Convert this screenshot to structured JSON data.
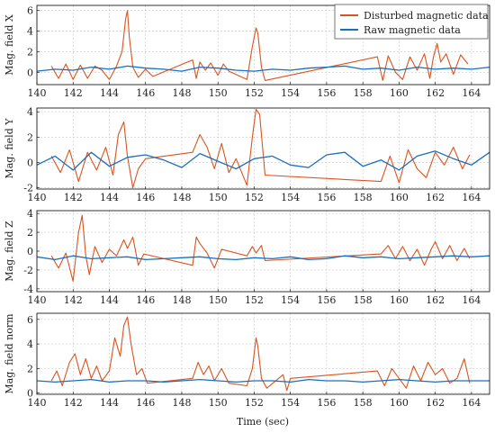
{
  "legend": {
    "position": "top-right",
    "entries": [
      {
        "label": "Disturbed magnetic data",
        "color": "#d9541e"
      },
      {
        "label": "Raw magnetic data",
        "color": "#1a6fbd"
      }
    ]
  },
  "chart_data": [
    {
      "type": "line",
      "ylabel": "Mag. field X",
      "xlim": [
        140,
        165
      ],
      "ylim": [
        -1.2,
        6.5
      ],
      "yticks": [
        0,
        2,
        4,
        6
      ],
      "xticks": [
        140,
        142,
        144,
        146,
        148,
        150,
        152,
        154,
        156,
        158,
        160,
        162,
        164
      ],
      "grid": true,
      "series": [
        {
          "name": "Disturbed magnetic data",
          "color": "#d9541e",
          "x": [
            140.8,
            141.2,
            141.6,
            142.0,
            142.4,
            142.8,
            143.2,
            143.6,
            144.0,
            144.4,
            144.7,
            144.9,
            145.0,
            145.1,
            145.3,
            145.6,
            146.0,
            146.4,
            148.6,
            148.8,
            149.0,
            149.3,
            149.6,
            150.0,
            150.3,
            150.6,
            151.6,
            151.9,
            152.1,
            152.2,
            152.4,
            152.6,
            158.8,
            159.1,
            159.4,
            159.8,
            160.2,
            160.6,
            161.0,
            161.4,
            161.7,
            161.9,
            162.1,
            162.3,
            162.6,
            163.0,
            163.4,
            163.8
          ],
          "y": [
            0.6,
            -0.6,
            0.8,
            -0.7,
            0.7,
            -0.6,
            0.6,
            0.2,
            -0.7,
            0.6,
            2.0,
            5.2,
            6.0,
            3.5,
            0.5,
            -0.5,
            0.3,
            -0.4,
            1.2,
            -0.6,
            1.0,
            0.2,
            0.9,
            -0.3,
            0.8,
            0.1,
            -0.7,
            2.5,
            4.3,
            3.8,
            0.5,
            -0.8,
            1.5,
            -0.8,
            1.6,
            0.0,
            -0.7,
            1.5,
            0.2,
            1.8,
            -0.6,
            1.5,
            2.8,
            1.0,
            1.8,
            -0.2,
            1.7,
            0.8
          ]
        },
        {
          "name": "Raw magnetic data",
          "color": "#1a6fbd",
          "x": [
            140.0,
            141.0,
            142.0,
            143.0,
            144.0,
            145.0,
            146.0,
            147.0,
            148.0,
            149.0,
            150.0,
            151.0,
            152.0,
            153.0,
            154.0,
            155.0,
            156.0,
            157.0,
            158.0,
            159.0,
            160.0,
            161.0,
            162.0,
            163.0,
            164.0,
            165.0
          ],
          "y": [
            0.1,
            0.3,
            0.2,
            0.5,
            0.3,
            0.6,
            0.4,
            0.3,
            0.1,
            0.5,
            0.4,
            0.2,
            0.1,
            0.3,
            0.2,
            0.4,
            0.5,
            0.6,
            0.3,
            0.4,
            0.2,
            0.5,
            0.3,
            0.4,
            0.3,
            0.5
          ]
        }
      ]
    },
    {
      "type": "line",
      "ylabel": "Mag. field Y",
      "xlim": [
        140,
        165
      ],
      "ylim": [
        -2.1,
        4.3
      ],
      "yticks": [
        -2,
        0,
        2,
        4
      ],
      "xticks": [
        140,
        142,
        144,
        146,
        148,
        150,
        152,
        154,
        156,
        158,
        160,
        162,
        164
      ],
      "grid": true,
      "series": [
        {
          "name": "Disturbed magnetic data",
          "color": "#d9541e",
          "x": [
            140.8,
            141.3,
            141.8,
            142.3,
            142.8,
            143.3,
            143.8,
            144.2,
            144.5,
            144.8,
            145.0,
            145.3,
            145.6,
            146.0,
            148.6,
            149.0,
            149.4,
            149.8,
            150.2,
            150.6,
            151.0,
            151.6,
            151.9,
            152.1,
            152.3,
            152.6,
            159.0,
            159.5,
            160.0,
            160.5,
            161.0,
            161.5,
            162.0,
            162.5,
            163.0,
            163.5,
            163.9
          ],
          "y": [
            0.5,
            -0.8,
            1.0,
            -1.5,
            0.8,
            -0.6,
            1.2,
            -1.0,
            2.2,
            3.2,
            0.5,
            -2.0,
            -0.5,
            0.3,
            0.8,
            2.2,
            1.2,
            -0.5,
            1.5,
            -0.8,
            0.3,
            -1.8,
            2.0,
            4.2,
            3.8,
            -1.0,
            -1.5,
            0.5,
            -1.6,
            1.0,
            -0.5,
            -1.2,
            0.8,
            -0.2,
            1.2,
            -0.5,
            0.6
          ]
        },
        {
          "name": "Raw magnetic data",
          "color": "#1a6fbd",
          "x": [
            140.0,
            141.0,
            142.0,
            143.0,
            144.0,
            145.0,
            146.0,
            147.0,
            148.0,
            149.0,
            150.0,
            151.0,
            152.0,
            153.0,
            154.0,
            155.0,
            156.0,
            157.0,
            158.0,
            159.0,
            160.0,
            161.0,
            162.0,
            163.0,
            164.0,
            165.0
          ],
          "y": [
            -0.2,
            0.5,
            -0.6,
            0.8,
            -0.3,
            0.4,
            0.6,
            0.2,
            -0.4,
            0.7,
            0.1,
            -0.5,
            0.3,
            0.5,
            -0.2,
            -0.4,
            0.6,
            0.8,
            -0.3,
            0.2,
            -0.6,
            0.5,
            0.9,
            0.3,
            -0.2,
            0.8
          ]
        }
      ]
    },
    {
      "type": "line",
      "ylabel": "Mag. field Z",
      "xlim": [
        140,
        165
      ],
      "ylim": [
        -4.3,
        4.3
      ],
      "yticks": [
        -4,
        -2,
        0,
        2,
        4
      ],
      "xticks": [
        140,
        142,
        144,
        146,
        148,
        150,
        152,
        154,
        156,
        158,
        160,
        162,
        164
      ],
      "grid": true,
      "series": [
        {
          "name": "Disturbed magnetic data",
          "color": "#d9541e",
          "x": [
            140.8,
            141.2,
            141.6,
            142.0,
            142.3,
            142.5,
            142.7,
            142.9,
            143.2,
            143.6,
            144.0,
            144.4,
            144.8,
            145.0,
            145.3,
            145.6,
            145.9,
            148.6,
            148.8,
            149.0,
            149.4,
            149.8,
            150.2,
            151.6,
            151.9,
            152.1,
            152.4,
            152.6,
            159.0,
            159.4,
            159.8,
            160.2,
            160.6,
            161.0,
            161.4,
            161.8,
            162.0,
            162.4,
            162.8,
            163.2,
            163.6,
            163.9
          ],
          "y": [
            -0.5,
            -1.8,
            -0.2,
            -3.2,
            2.0,
            3.8,
            -0.5,
            -2.5,
            0.5,
            -1.2,
            0.2,
            -0.5,
            1.2,
            0.3,
            1.5,
            -1.5,
            -0.3,
            -1.5,
            1.5,
            0.8,
            -0.2,
            -1.8,
            0.2,
            -0.5,
            0.5,
            -0.2,
            0.6,
            -1.0,
            -0.3,
            0.6,
            -0.8,
            0.5,
            -1.0,
            0.2,
            -1.5,
            0.3,
            1.0,
            -0.8,
            0.6,
            -1.0,
            0.3,
            -0.8
          ]
        },
        {
          "name": "Raw magnetic data",
          "color": "#1a6fbd",
          "x": [
            140.0,
            141.0,
            142.0,
            143.0,
            144.0,
            145.0,
            146.0,
            147.0,
            148.0,
            149.0,
            150.0,
            151.0,
            152.0,
            153.0,
            154.0,
            155.0,
            156.0,
            157.0,
            158.0,
            159.0,
            160.0,
            161.0,
            162.0,
            163.0,
            164.0,
            165.0
          ],
          "y": [
            -0.6,
            -0.9,
            -0.5,
            -0.8,
            -0.7,
            -0.6,
            -0.9,
            -0.8,
            -0.7,
            -0.6,
            -0.8,
            -0.9,
            -0.7,
            -0.8,
            -0.6,
            -0.9,
            -0.8,
            -0.5,
            -0.7,
            -0.6,
            -0.8,
            -0.7,
            -0.6,
            -0.5,
            -0.6,
            -0.5
          ]
        }
      ]
    },
    {
      "type": "line",
      "ylabel": "Mag. field norm",
      "xlabel": "Time (sec)",
      "xlim": [
        140,
        165
      ],
      "ylim": [
        -0.1,
        6.5
      ],
      "yticks": [
        0,
        2,
        4,
        6
      ],
      "xticks": [
        140,
        142,
        144,
        146,
        148,
        150,
        152,
        154,
        156,
        158,
        160,
        162,
        164
      ],
      "grid": true,
      "series": [
        {
          "name": "Disturbed magnetic data",
          "color": "#d9541e",
          "x": [
            140.8,
            141.1,
            141.4,
            141.8,
            142.1,
            142.4,
            142.7,
            143.0,
            143.3,
            143.6,
            144.0,
            144.3,
            144.6,
            144.8,
            145.0,
            145.2,
            145.5,
            145.8,
            146.1,
            148.6,
            148.9,
            149.2,
            149.5,
            149.8,
            150.2,
            150.6,
            151.6,
            151.9,
            152.1,
            152.2,
            152.4,
            152.7,
            153.6,
            153.8,
            154.0,
            158.8,
            159.2,
            159.6,
            160.0,
            160.4,
            160.8,
            161.2,
            161.6,
            162.0,
            162.4,
            162.8,
            163.2,
            163.6,
            163.9
          ],
          "y": [
            1.0,
            1.8,
            0.6,
            2.5,
            3.2,
            1.5,
            2.8,
            1.2,
            2.2,
            1.0,
            1.8,
            4.5,
            3.0,
            5.5,
            6.2,
            4.0,
            1.5,
            2.0,
            0.8,
            1.2,
            2.5,
            1.5,
            2.2,
            1.0,
            2.0,
            0.8,
            0.6,
            2.0,
            4.5,
            3.8,
            1.2,
            0.4,
            1.5,
            0.2,
            1.2,
            1.8,
            0.6,
            2.0,
            1.2,
            0.4,
            2.2,
            1.0,
            2.5,
            1.5,
            2.0,
            0.8,
            1.2,
            2.8,
            0.8
          ]
        },
        {
          "name": "Raw magnetic data",
          "color": "#1a6fbd",
          "x": [
            140.0,
            141.0,
            142.0,
            143.0,
            144.0,
            145.0,
            146.0,
            147.0,
            148.0,
            149.0,
            150.0,
            151.0,
            152.0,
            153.0,
            154.0,
            155.0,
            156.0,
            157.0,
            158.0,
            159.0,
            160.0,
            161.0,
            162.0,
            163.0,
            164.0,
            165.0
          ],
          "y": [
            1.0,
            0.9,
            1.0,
            1.1,
            0.9,
            1.0,
            1.0,
            0.9,
            1.0,
            1.1,
            1.0,
            0.9,
            1.0,
            1.0,
            0.9,
            1.1,
            1.0,
            1.0,
            0.9,
            1.0,
            1.1,
            1.0,
            0.9,
            1.0,
            1.0,
            1.0
          ]
        }
      ]
    }
  ]
}
